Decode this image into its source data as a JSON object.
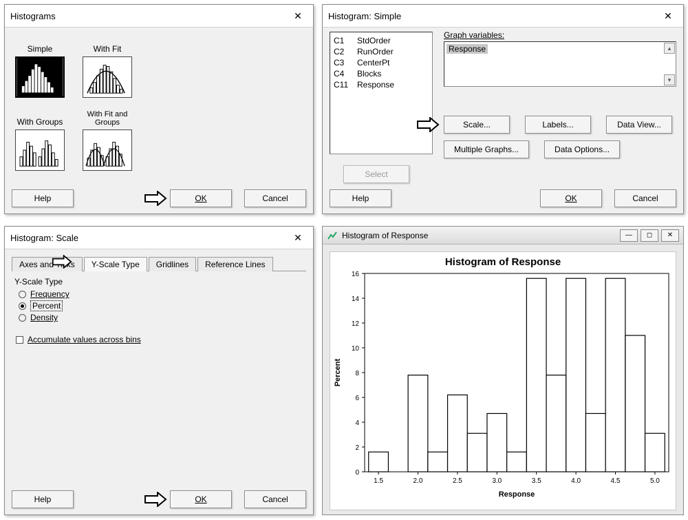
{
  "dlg1": {
    "title": "Histograms",
    "options": {
      "simple": "Simple",
      "withfit": "With Fit",
      "withgroups": "With Groups",
      "withfitgroups": "With Fit and Groups"
    },
    "help": "Help",
    "ok": "OK",
    "cancel": "Cancel"
  },
  "dlg2": {
    "title": "Histogram: Simple",
    "columns": [
      {
        "id": "C1",
        "name": "StdOrder"
      },
      {
        "id": "C2",
        "name": "RunOrder"
      },
      {
        "id": "C3",
        "name": "CenterPt"
      },
      {
        "id": "C4",
        "name": "Blocks"
      },
      {
        "id": "C11",
        "name": "Response"
      }
    ],
    "graphvars_label": "Graph variables:",
    "graphvars_selected": "Response",
    "scale_btn": "Scale...",
    "labels_btn": "Labels...",
    "dataview_btn": "Data View...",
    "multigraphs_btn": "Multiple Graphs...",
    "dataoptions_btn": "Data Options...",
    "select_btn": "Select",
    "help": "Help",
    "ok": "OK",
    "cancel": "Cancel"
  },
  "dlg3": {
    "title": "Histogram: Scale",
    "tabs": {
      "axes": "Axes and Ticks",
      "yscale": "Y-Scale Type",
      "grid": "Gridlines",
      "ref": "Reference Lines"
    },
    "group_label": "Y-Scale Type",
    "radios": {
      "freq": "Frequency",
      "percent": "Percent",
      "density": "Density"
    },
    "selected_radio": "percent",
    "accumulate": "Accumulate values across bins",
    "help": "Help",
    "ok": "OK",
    "cancel": "Cancel"
  },
  "chart": {
    "window_title": "Histogram of Response",
    "chart_title": "Histogram of Response",
    "type": "histogram",
    "xlabel": "Response",
    "ylabel": "Percent",
    "x_ticks": [
      1.5,
      2.0,
      2.5,
      3.0,
      3.5,
      4.0,
      4.5,
      5.0
    ],
    "y_ticks": [
      0,
      2,
      4,
      6,
      8,
      10,
      12,
      14,
      16
    ],
    "ylim": [
      0,
      16
    ],
    "bin_centers": [
      1.5,
      1.75,
      2.0,
      2.25,
      2.5,
      2.75,
      3.0,
      3.25,
      3.5,
      3.75,
      4.0,
      4.25,
      4.5,
      4.75,
      5.0
    ],
    "values": [
      1.6,
      0.0,
      7.8,
      1.6,
      6.2,
      3.1,
      4.7,
      1.6,
      15.6,
      7.8,
      15.6,
      4.7,
      15.6,
      11.0,
      3.1
    ],
    "bin_width": 0.25,
    "bar_fill": "#ffffff",
    "bar_stroke": "#000000",
    "axis_color": "#000000",
    "grid_color": "#cfcfcf",
    "background": "#ffffff",
    "title_fontsize": 15,
    "label_fontsize": 11,
    "tick_fontsize": 10
  },
  "colors": {
    "dialog_bg": "#f0f0f0",
    "panel_bg": "#f7f7f7",
    "border": "#888888"
  }
}
